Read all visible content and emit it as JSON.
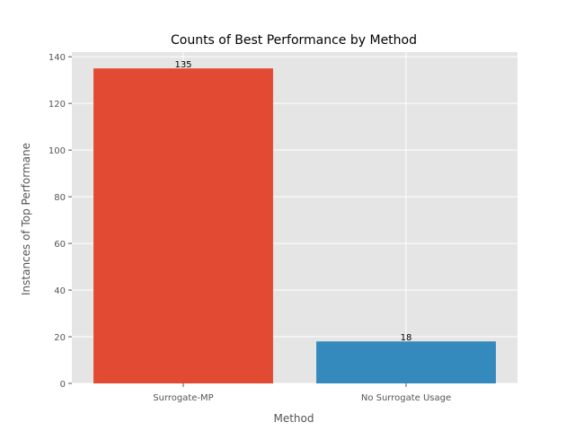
{
  "chart_data": {
    "type": "bar",
    "title": "Counts of Best Performance by Method",
    "xlabel": "Method",
    "ylabel": "Instances of Top Performane",
    "categories": [
      "Surrogate-MP",
      "No Surrogate Usage"
    ],
    "values": [
      135,
      18
    ],
    "data_labels": [
      "135",
      "18"
    ],
    "colors": [
      "#E24A33",
      "#348ABD"
    ],
    "ylim": [
      0,
      142
    ],
    "yticks": [
      0,
      20,
      40,
      60,
      80,
      100,
      120,
      140
    ],
    "ytick_labels": [
      "0",
      "20",
      "40",
      "60",
      "80",
      "100",
      "120",
      "140"
    ],
    "grid": true,
    "background_color": "#E5E5E5",
    "grid_color": "#FFFFFF"
  }
}
